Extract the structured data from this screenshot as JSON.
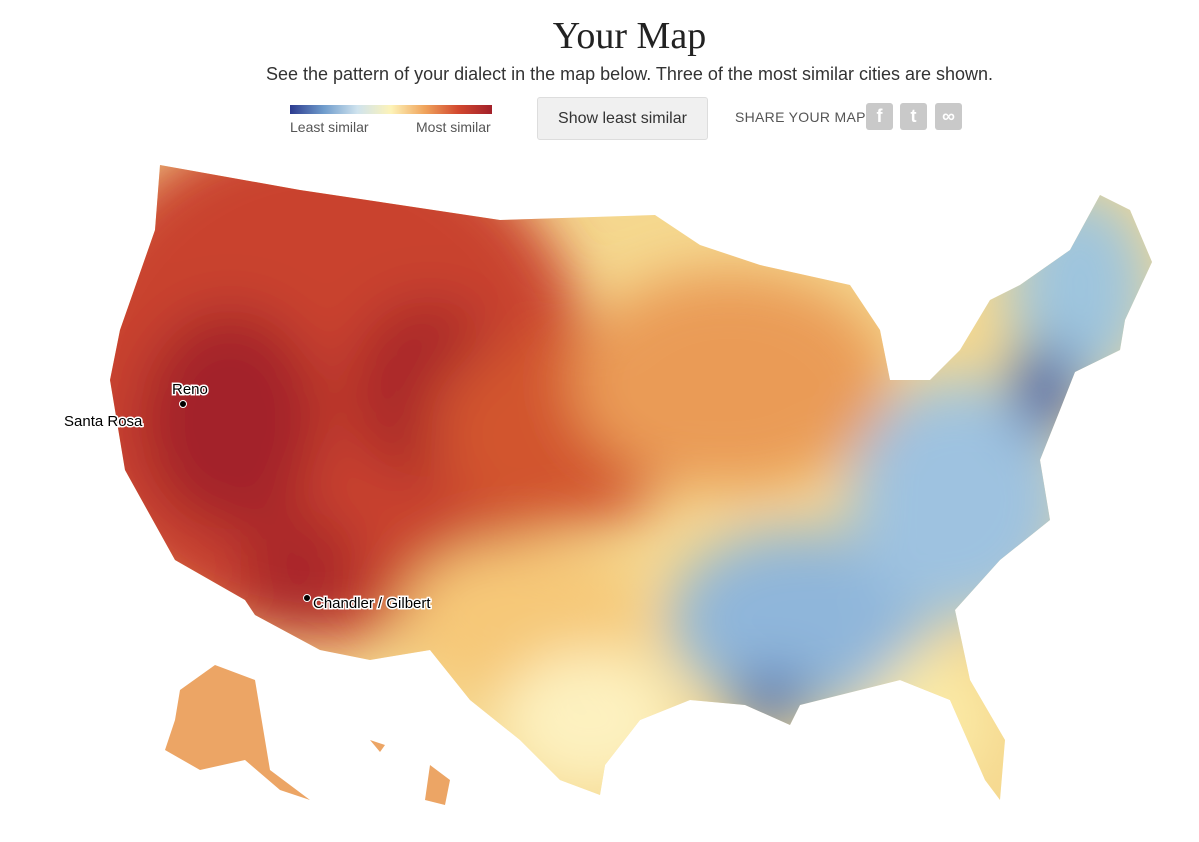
{
  "header": {
    "title": "Your Map",
    "subtitle": "See the pattern of your dialect in the map below. Three of the most similar cities are shown."
  },
  "legend": {
    "low": "Least similar",
    "high": "Most similar"
  },
  "button": {
    "label": "Show least similar"
  },
  "share": {
    "label": "SHARE YOUR MAP:"
  },
  "map": {
    "cities": [
      {
        "label": "Reno"
      },
      {
        "label": "Santa Rosa"
      },
      {
        "label": "Chandler / Gilbert"
      }
    ]
  }
}
